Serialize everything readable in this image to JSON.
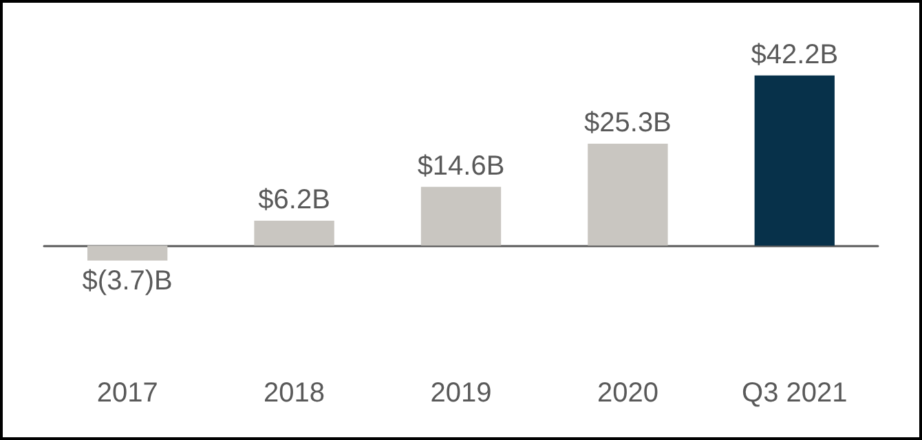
{
  "chart_data": {
    "type": "bar",
    "categories": [
      "2017",
      "2018",
      "2019",
      "2020",
      "Q3 2021"
    ],
    "values": [
      -3.7,
      6.2,
      14.6,
      25.3,
      42.2
    ],
    "colors": [
      "#c9c6c1",
      "#c9c6c1",
      "#c9c6c1",
      "#c9c6c1",
      "#07314a"
    ],
    "value_labels": [
      "$(3.7)B",
      "$6.2B",
      "$14.6B",
      "$25.3B",
      "$42.2B"
    ]
  }
}
